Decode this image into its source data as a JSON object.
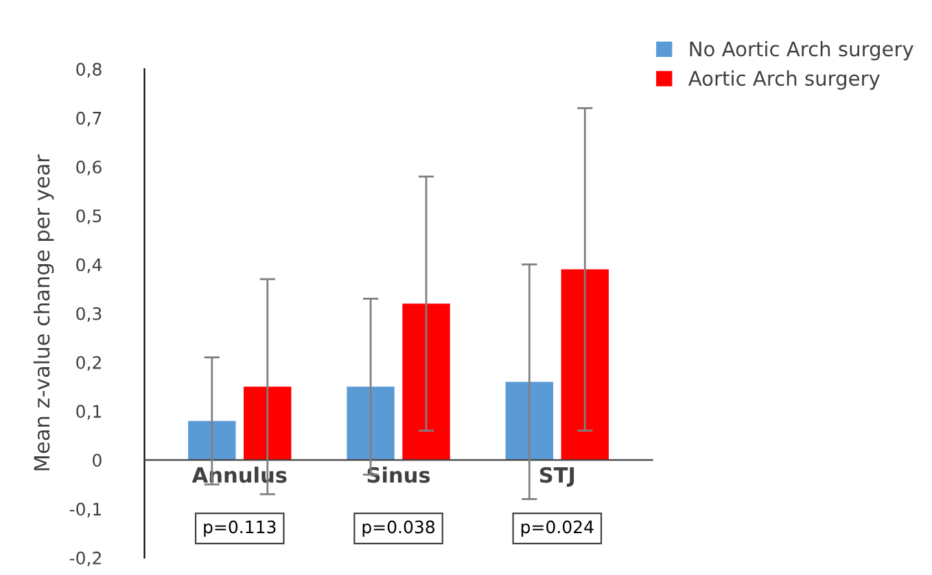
{
  "chart_data": {
    "type": "bar",
    "ylabel": "Mean z-value change per year",
    "categories": [
      "Annulus",
      "Sinus",
      "STJ"
    ],
    "series": [
      {
        "name": "No Aortic Arch surgery",
        "color": "#5b9bd5",
        "values": [
          0.08,
          0.15,
          0.16
        ],
        "errors": [
          [
            -0.05,
            0.21
          ],
          [
            -0.03,
            0.33
          ],
          [
            -0.08,
            0.4
          ]
        ]
      },
      {
        "name": "Aortic Arch surgery",
        "color": "#ff0000",
        "values": [
          0.15,
          0.32,
          0.39
        ],
        "errors": [
          [
            -0.07,
            0.37
          ],
          [
            0.06,
            0.58
          ],
          [
            0.06,
            0.72
          ]
        ]
      }
    ],
    "ylim": [
      -0.2,
      0.8
    ],
    "yticks": [
      {
        "value": -0.2,
        "label": "-0,2"
      },
      {
        "value": -0.1,
        "label": "-0,1"
      },
      0,
      {
        "value": 0.1,
        "label": "0,1"
      },
      {
        "value": 0.2,
        "label": "0,2"
      },
      {
        "value": 0.3,
        "label": "0,3"
      },
      {
        "value": 0.4,
        "label": "0,4"
      },
      {
        "value": 0.5,
        "label": "0,5"
      },
      {
        "value": 0.6,
        "label": "0,6"
      },
      {
        "value": 0.7,
        "label": "0,7"
      },
      {
        "value": 0.8,
        "label": "0,8"
      }
    ],
    "annotations": [
      "p=0.113",
      "p=0.038",
      "p=0.024"
    ],
    "grid": false,
    "legend": "top right"
  }
}
